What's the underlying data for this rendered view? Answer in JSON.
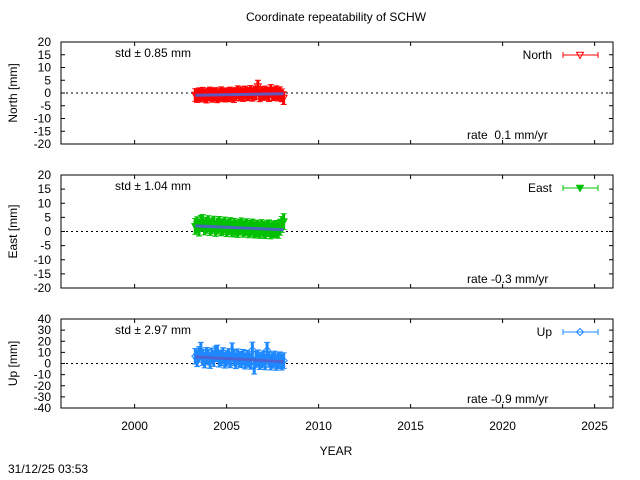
{
  "title": "Coordinate repeatability of SCHW",
  "timestamp": "31/12/25 03:53",
  "chart_data": [
    {
      "type": "scatter",
      "title": "Coordinate repeatability of SCHW",
      "xlabel": "",
      "ylabel": "North [mm]",
      "xlim": [
        1996,
        2026
      ],
      "ylim": [
        -20,
        20
      ],
      "yticks": [
        "20",
        "15",
        "10",
        "5",
        "0",
        "-5",
        "-10",
        "-15",
        "-20"
      ],
      "grid": false,
      "legend_position": "top-right",
      "color": "#ff0000",
      "marker": "triangle-down-open",
      "series_name": "North",
      "std_label": "std ± 0.85 mm",
      "rate_label": "rate  0.1 mm/yr",
      "error": 2.5,
      "trend": {
        "start": [
          2003.3,
          -0.9
        ],
        "end": [
          2008.1,
          -0.3
        ]
      },
      "x": [
        2003.3,
        2003.4,
        2003.5,
        2003.6,
        2003.7,
        2003.8,
        2003.9,
        2004.0,
        2004.1,
        2004.2,
        2004.3,
        2004.4,
        2004.5,
        2004.6,
        2004.7,
        2004.8,
        2004.9,
        2005.0,
        2005.1,
        2005.2,
        2005.3,
        2005.4,
        2005.5,
        2005.6,
        2005.7,
        2005.8,
        2005.9,
        2006.0,
        2006.1,
        2006.2,
        2006.3,
        2006.4,
        2006.5,
        2006.6,
        2006.7,
        2006.8,
        2006.9,
        2007.0,
        2007.1,
        2007.2,
        2007.3,
        2007.4,
        2007.5,
        2007.6,
        2007.7,
        2007.8,
        2007.9,
        2008.0,
        2008.1
      ],
      "y": [
        -0.8,
        -1.2,
        -0.5,
        -1.0,
        -0.3,
        -0.9,
        -1.4,
        -0.6,
        -0.2,
        -1.1,
        -0.7,
        -0.4,
        -1.3,
        -0.8,
        -0.1,
        -0.6,
        -1.0,
        -0.5,
        -0.9,
        -0.2,
        -0.7,
        -1.2,
        -0.4,
        0.3,
        -0.6,
        -0.1,
        -0.8,
        0.2,
        -0.5,
        -0.3,
        0.4,
        -0.7,
        -0.2,
        0.1,
        2.5,
        -0.9,
        0.0,
        -0.4,
        0.2,
        -0.3,
        -0.8,
        0.8,
        -0.5,
        -0.2,
        0.3,
        -0.6,
        -0.1,
        -0.9,
        -2.0
      ]
    },
    {
      "type": "scatter",
      "xlabel": "",
      "ylabel": "East [mm]",
      "xlim": [
        1996,
        2026
      ],
      "ylim": [
        -20,
        20
      ],
      "yticks": [
        "20",
        "15",
        "10",
        "5",
        "0",
        "-5",
        "-10",
        "-15",
        "-20"
      ],
      "grid": false,
      "legend_position": "top-right",
      "color": "#00c000",
      "marker": "triangle-down-filled",
      "series_name": "East",
      "std_label": "std ± 1.04 mm",
      "rate_label": "rate -0.3 mm/yr",
      "error": 2.8,
      "trend": {
        "start": [
          2003.3,
          2.0
        ],
        "end": [
          2008.1,
          0.6
        ]
      },
      "x": [
        2003.3,
        2003.4,
        2003.5,
        2003.6,
        2003.7,
        2003.8,
        2003.9,
        2004.0,
        2004.1,
        2004.2,
        2004.3,
        2004.4,
        2004.5,
        2004.6,
        2004.7,
        2004.8,
        2004.9,
        2005.0,
        2005.1,
        2005.2,
        2005.3,
        2005.4,
        2005.5,
        2005.6,
        2005.7,
        2005.8,
        2005.9,
        2006.0,
        2006.1,
        2006.2,
        2006.3,
        2006.4,
        2006.5,
        2006.6,
        2006.7,
        2006.8,
        2006.9,
        2007.0,
        2007.1,
        2007.2,
        2007.3,
        2007.4,
        2007.5,
        2007.6,
        2007.7,
        2007.8,
        2007.9,
        2008.0,
        2008.1
      ],
      "y": [
        1.8,
        2.4,
        1.2,
        2.9,
        3.2,
        1.6,
        2.2,
        2.8,
        1.4,
        2.0,
        2.6,
        1.1,
        1.9,
        2.5,
        1.3,
        1.7,
        2.3,
        1.0,
        1.6,
        2.1,
        0.9,
        1.8,
        1.2,
        0.7,
        1.5,
        2.0,
        0.8,
        1.3,
        1.7,
        0.6,
        1.1,
        1.6,
        0.5,
        1.2,
        0.9,
        0.4,
        1.4,
        0.8,
        0.3,
        1.0,
        1.3,
        0.2,
        0.9,
        0.6,
        1.1,
        0.4,
        1.5,
        2.5,
        3.5
      ]
    },
    {
      "type": "scatter",
      "xlabel": "YEAR",
      "ylabel": "Up [mm]",
      "xlim": [
        1996,
        2026
      ],
      "ylim": [
        -40,
        40
      ],
      "xticks": [
        "2000",
        "2005",
        "2010",
        "2015",
        "2020",
        "2025"
      ],
      "yticks": [
        "40",
        "30",
        "20",
        "10",
        "0",
        "-10",
        "-20",
        "-30",
        "-40"
      ],
      "grid": false,
      "legend_position": "top-right",
      "color": "#1e88ff",
      "marker": "diamond-open",
      "series_name": "Up",
      "std_label": "std ± 2.97 mm",
      "rate_label": "rate -0.9 mm/yr",
      "error": 7,
      "trend": {
        "start": [
          2003.3,
          6.0
        ],
        "end": [
          2008.1,
          1.7
        ]
      },
      "x": [
        2003.3,
        2003.4,
        2003.5,
        2003.6,
        2003.7,
        2003.8,
        2003.9,
        2004.0,
        2004.1,
        2004.2,
        2004.3,
        2004.4,
        2004.5,
        2004.6,
        2004.7,
        2004.8,
        2004.9,
        2005.0,
        2005.1,
        2005.2,
        2005.3,
        2005.4,
        2005.5,
        2005.6,
        2005.7,
        2005.8,
        2005.9,
        2006.0,
        2006.1,
        2006.2,
        2006.3,
        2006.4,
        2006.5,
        2006.6,
        2006.7,
        2006.8,
        2006.9,
        2007.0,
        2007.1,
        2007.2,
        2007.3,
        2007.4,
        2007.5,
        2007.6,
        2007.7,
        2007.8,
        2007.9,
        2008.0,
        2008.1
      ],
      "y": [
        6.5,
        4.2,
        8.1,
        12.0,
        5.3,
        3.1,
        7.4,
        5.8,
        2.6,
        6.9,
        4.4,
        8.6,
        9.5,
        3.8,
        5.1,
        7.2,
        2.9,
        4.6,
        6.3,
        3.2,
        11.5,
        5.0,
        2.4,
        6.1,
        4.0,
        3.3,
        5.6,
        2.1,
        4.8,
        3.6,
        1.9,
        12.2,
        -2.5,
        3.9,
        5.2,
        1.6,
        3.0,
        4.3,
        1.4,
        12.0,
        3.7,
        1.2,
        2.8,
        4.1,
        0.9,
        2.5,
        3.4,
        1.1,
        2.6
      ]
    }
  ]
}
